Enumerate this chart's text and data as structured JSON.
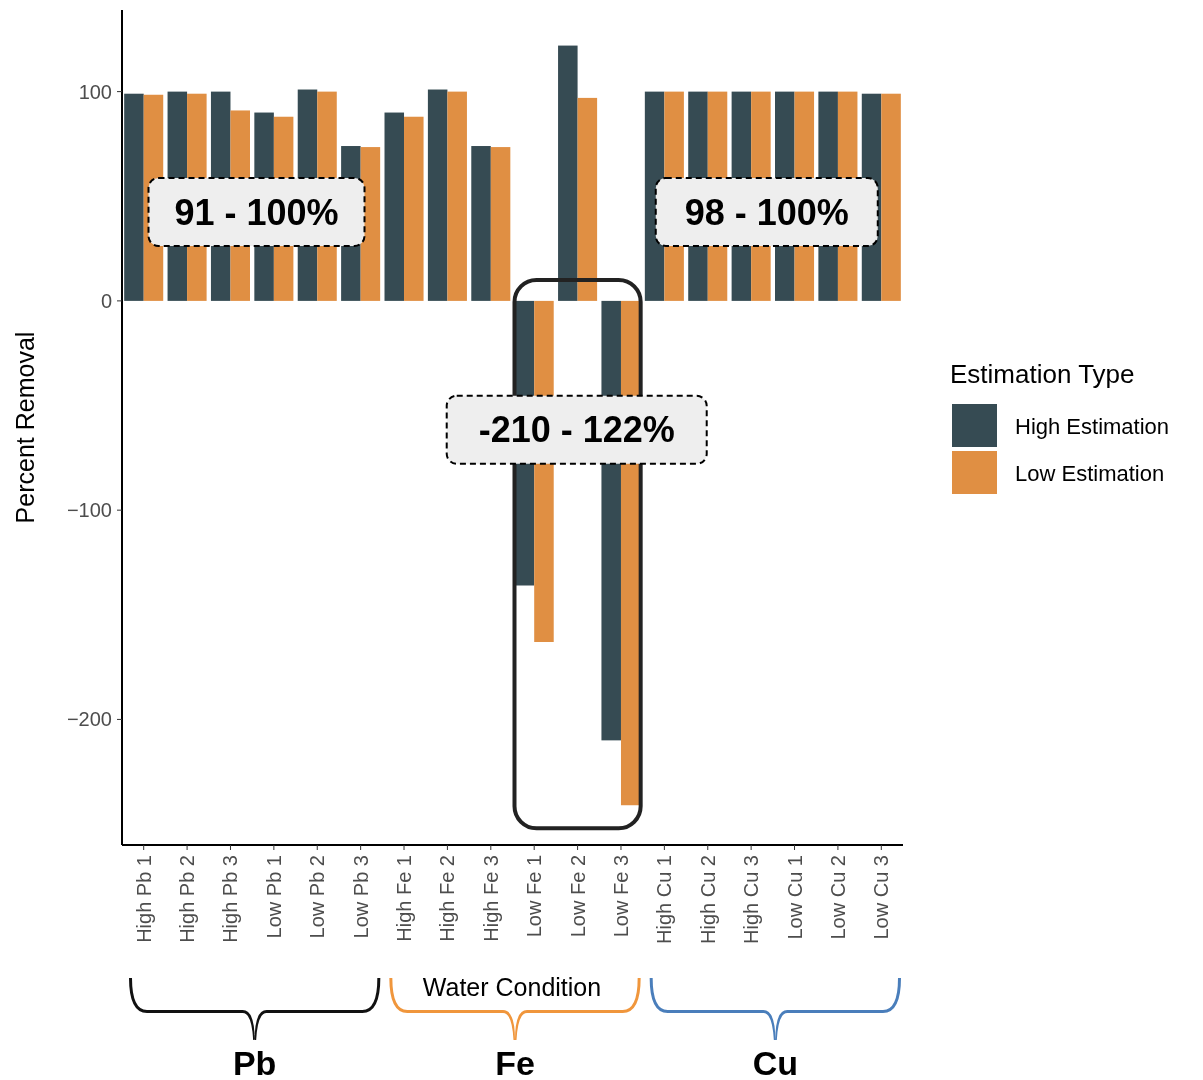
{
  "chart_data": {
    "type": "bar",
    "xlabel": "Water Condition",
    "ylabel": "Percent Removal",
    "legend_title": "Estimation Type",
    "legend": "right",
    "categories": [
      "High Pb 1",
      "High Pb 2",
      "High Pb 3",
      "Low Pb 1",
      "Low Pb 2",
      "Low Pb 3",
      "High Fe 1",
      "High Fe 2",
      "High Fe 3",
      "Low Fe 1",
      "Low Fe 2",
      "Low Fe 3",
      "High Cu 1",
      "High Cu 2",
      "High Cu 3",
      "Low Cu 1",
      "Low Cu 2",
      "Low Cu 3"
    ],
    "series": [
      {
        "name": "High Estimation",
        "color": "#364b53",
        "values": [
          99,
          100,
          100,
          90,
          101,
          74,
          90,
          101,
          74,
          -136,
          122,
          -210,
          100,
          100,
          100,
          100,
          100,
          99
        ]
      },
      {
        "name": "Low Estimation",
        "color": "#e08f43",
        "values": [
          98.5,
          99,
          91,
          88,
          100,
          73.5,
          88,
          100,
          73.5,
          -163,
          97,
          -241,
          100,
          100,
          100,
          100,
          100,
          99
        ]
      }
    ],
    "ylim": [
      -260,
      139
    ],
    "yticks": [
      {
        "value": -200,
        "label": "−200"
      },
      {
        "value": -100,
        "label": "−100"
      },
      0,
      100
    ],
    "grid": false,
    "annotations": [
      "91 - 100%",
      "98 - 100%",
      "-210 - 122%",
      "Pb",
      "Fe",
      "Cu"
    ]
  }
}
